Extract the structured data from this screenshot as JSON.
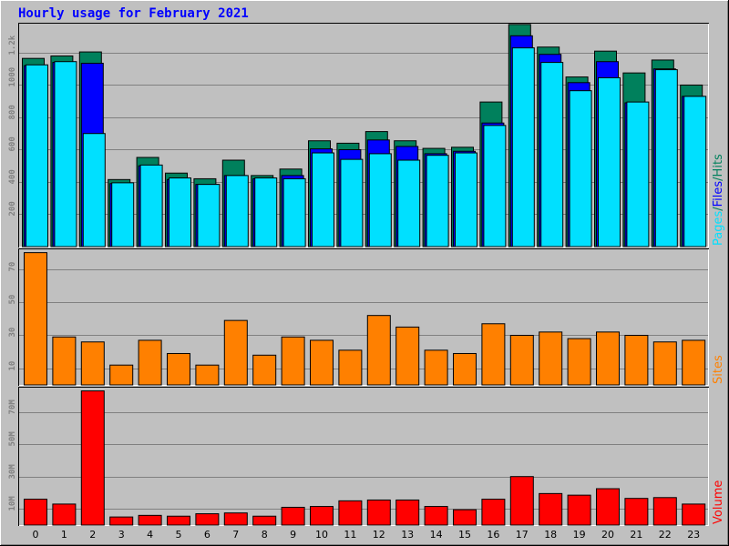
{
  "colors": {
    "hits": "#00805c",
    "files": "#0000ff",
    "pages": "#00e0ff",
    "sites": "#ff8000",
    "volume": "#ff0000",
    "title": "#0000ff",
    "background": "#c0c0c0",
    "grid": "#808080"
  },
  "chart_data": [
    {
      "type": "bar",
      "title": "Hourly usage for February 2021",
      "ylabel_parts": [
        "Pages",
        "/",
        "Files",
        "/",
        "Hits"
      ],
      "y_ticks": [
        "200",
        "400",
        "600",
        "800",
        "1000",
        "1.2k"
      ],
      "y_tick_values": [
        200,
        400,
        600,
        800,
        1000,
        1200
      ],
      "ylim": [
        0,
        1380
      ],
      "grid": true,
      "categories": [
        "0",
        "1",
        "2",
        "3",
        "4",
        "5",
        "6",
        "7",
        "8",
        "9",
        "10",
        "11",
        "12",
        "13",
        "14",
        "15",
        "16",
        "17",
        "18",
        "19",
        "20",
        "21",
        "22",
        "23"
      ],
      "series": [
        {
          "name": "Hits",
          "values": [
            1165,
            1180,
            1205,
            415,
            552,
            455,
            420,
            535,
            440,
            480,
            655,
            640,
            712,
            655,
            608,
            615,
            895,
            1375,
            1235,
            1050,
            1210,
            1075,
            1155,
            1000
          ]
        },
        {
          "name": "Files",
          "values": [
            1120,
            1140,
            1135,
            390,
            500,
            415,
            385,
            440,
            420,
            440,
            605,
            600,
            660,
            620,
            575,
            590,
            765,
            1305,
            1190,
            1015,
            1145,
            890,
            1100,
            930
          ]
        },
        {
          "name": "Pages",
          "values": [
            1125,
            1145,
            700,
            395,
            505,
            425,
            385,
            440,
            425,
            420,
            580,
            540,
            575,
            535,
            565,
            580,
            750,
            1230,
            1140,
            965,
            1045,
            895,
            1095,
            930
          ]
        }
      ]
    },
    {
      "type": "bar",
      "ylabel": "Sites",
      "y_ticks": [
        "10",
        "30",
        "50",
        "70"
      ],
      "y_tick_values": [
        10,
        30,
        50,
        70
      ],
      "ylim": [
        0,
        82
      ],
      "grid": true,
      "categories": [
        "0",
        "1",
        "2",
        "3",
        "4",
        "5",
        "6",
        "7",
        "8",
        "9",
        "10",
        "11",
        "12",
        "13",
        "14",
        "15",
        "16",
        "17",
        "18",
        "19",
        "20",
        "21",
        "22",
        "23"
      ],
      "series": [
        {
          "name": "Sites",
          "values": [
            80,
            29,
            26,
            12,
            27,
            19,
            12,
            39,
            18,
            29,
            27,
            21,
            42,
            35,
            21,
            19,
            37,
            30,
            32,
            28,
            32,
            30,
            26,
            27
          ]
        }
      ]
    },
    {
      "type": "bar",
      "ylabel": "Volume",
      "y_ticks": [
        "10M",
        "30M",
        "50M",
        "70M"
      ],
      "y_tick_values": [
        10,
        30,
        50,
        70
      ],
      "ylim": [
        0,
        85
      ],
      "grid": true,
      "categories": [
        "0",
        "1",
        "2",
        "3",
        "4",
        "5",
        "6",
        "7",
        "8",
        "9",
        "10",
        "11",
        "12",
        "13",
        "14",
        "15",
        "16",
        "17",
        "18",
        "19",
        "20",
        "21",
        "22",
        "23"
      ],
      "series": [
        {
          "name": "Volume (MB)",
          "values": [
            16,
            13,
            83,
            5,
            6,
            5.5,
            7,
            7.5,
            5.5,
            11,
            11.5,
            15,
            15.5,
            15.5,
            11.5,
            9.5,
            16,
            30,
            19.5,
            18.5,
            22.5,
            16.5,
            17,
            13
          ]
        }
      ]
    }
  ]
}
